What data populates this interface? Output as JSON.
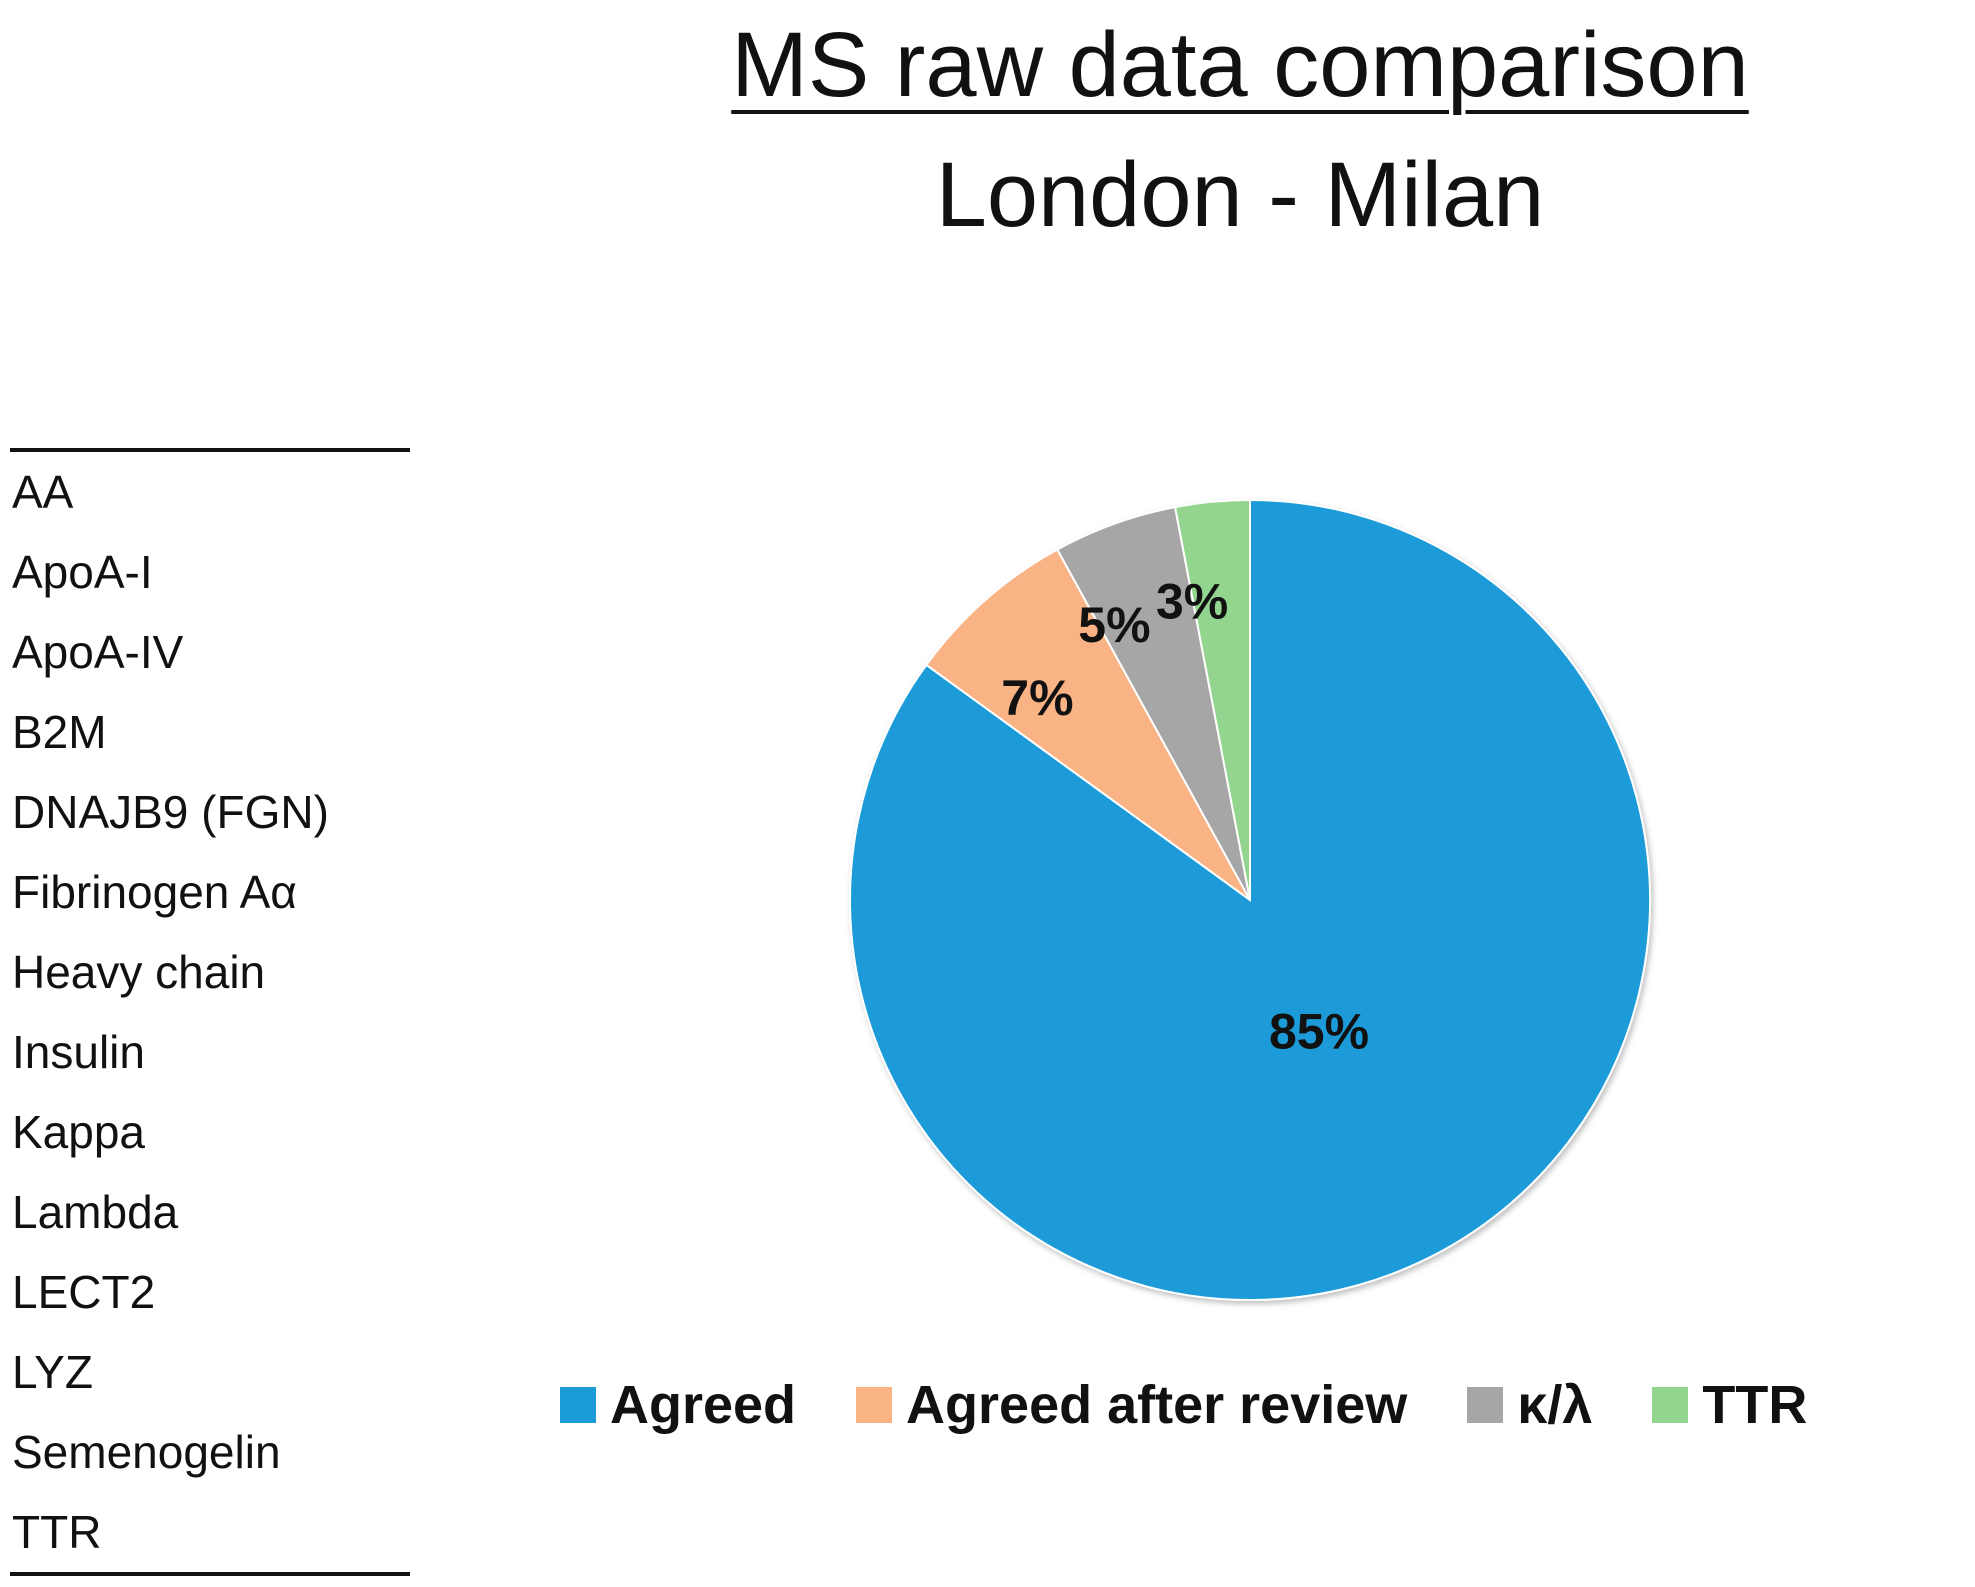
{
  "chart_data": {
    "type": "pie",
    "title": "MS raw data comparison",
    "subtitle": "London - Milan",
    "slices": [
      {
        "label": "Agreed",
        "value": 85,
        "display": "85%",
        "color": "#1b9bd8"
      },
      {
        "label": "Agreed after review",
        "value": 7,
        "display": "7%",
        "color": "#f9b384"
      },
      {
        "label": "κ/λ",
        "value": 5,
        "display": "5%",
        "color": "#a6a6a6"
      },
      {
        "label": "TTR",
        "value": 3,
        "display": "3%",
        "color": "#93d48f"
      }
    ],
    "start_angle_deg": 0,
    "direction": "clockwise-from-top",
    "legend_position": "bottom"
  },
  "protein_table": {
    "items": [
      "AA",
      "ApoA-I",
      "ApoA-IV",
      "B2M",
      "DNAJB9 (FGN)",
      "Fibrinogen Aα",
      "Heavy chain",
      "Insulin",
      "Kappa",
      "Lambda",
      "LECT2",
      "LYZ",
      "Semenogelin",
      "TTR"
    ]
  }
}
